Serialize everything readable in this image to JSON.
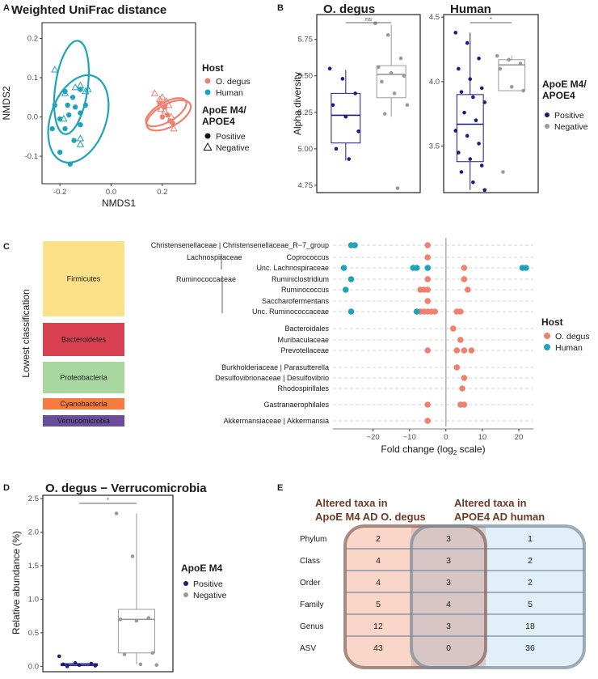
{
  "panel_labels": {
    "a": "A",
    "b": "B",
    "c": "C",
    "d": "D",
    "e": "E"
  },
  "colors": {
    "degus": "#f08070",
    "human": "#1fa3b8",
    "positive": "#1c1c80",
    "negative": "#9a9a9a",
    "firmicutes": "#fde08a",
    "bacteroidetes": "#d94152",
    "proteobacteria": "#a8d8a0",
    "cyanobacteria": "#f77a3e",
    "verrucomicrobia": "#6a4c9c",
    "venn_left": "#f9d2c3",
    "venn_right": "#cfe6f5",
    "venn_left_edge": "#8a6a60",
    "venn_right_edge": "#7a8a9a"
  },
  "chart_data": [
    {
      "id": "A",
      "type": "scatter",
      "title": "Weighted UniFrac distance",
      "xlabel": "NMDS1",
      "ylabel": "NMDS2",
      "xlim": [
        -0.27,
        0.33
      ],
      "ylim": [
        -0.17,
        0.24
      ],
      "xticks": [
        "-0.2",
        "0.0",
        "0.2"
      ],
      "xtick_values": [
        -0.2,
        0.0,
        0.2
      ],
      "yticks": [
        "-0.1",
        "0.0",
        "0.1",
        "0.2"
      ],
      "ytick_values": [
        -0.1,
        0.0,
        0.1,
        0.2
      ],
      "legend_host_title": "Host",
      "legend_host": [
        "O. degus",
        "Human"
      ],
      "legend_shape_title": "ApoE M4/ APOE4",
      "legend_shape_title_lines": [
        "ApoE M4/",
        "APOE4"
      ],
      "legend_shape": [
        "Positive",
        "Negative"
      ],
      "ellipses": [
        {
          "group": "human",
          "cx": -0.155,
          "cy": 0.075,
          "rx": 0.145,
          "ry": 0.05,
          "angle_deg": -82
        },
        {
          "group": "human",
          "cx": -0.128,
          "cy": -0.005,
          "rx": 0.14,
          "ry": 0.085,
          "angle_deg": -70
        },
        {
          "group": "degus",
          "cx": 0.215,
          "cy": 0.012,
          "rx": 0.07,
          "ry": 0.03,
          "angle_deg": -30
        },
        {
          "group": "degus",
          "cx": 0.225,
          "cy": 0.004,
          "rx": 0.075,
          "ry": 0.035,
          "angle_deg": -28
        }
      ],
      "points": [
        {
          "x": -0.22,
          "y": 0.03,
          "host": "human",
          "apoe": "positive"
        },
        {
          "x": -0.18,
          "y": 0.065,
          "host": "human",
          "apoe": "positive"
        },
        {
          "x": -0.17,
          "y": 0.03,
          "host": "human",
          "apoe": "positive"
        },
        {
          "x": -0.15,
          "y": 0.05,
          "host": "human",
          "apoe": "positive"
        },
        {
          "x": -0.12,
          "y": 0.01,
          "host": "human",
          "apoe": "positive"
        },
        {
          "x": -0.165,
          "y": 0.005,
          "host": "human",
          "apoe": "positive"
        },
        {
          "x": -0.14,
          "y": 0.025,
          "host": "human",
          "apoe": "positive"
        },
        {
          "x": -0.2,
          "y": -0.005,
          "host": "human",
          "apoe": "positive"
        },
        {
          "x": -0.23,
          "y": -0.03,
          "host": "human",
          "apoe": "positive"
        },
        {
          "x": -0.18,
          "y": -0.03,
          "host": "human",
          "apoe": "positive"
        },
        {
          "x": -0.12,
          "y": -0.02,
          "host": "human",
          "apoe": "positive"
        },
        {
          "x": -0.145,
          "y": -0.06,
          "host": "human",
          "apoe": "positive"
        },
        {
          "x": -0.2,
          "y": -0.09,
          "host": "human",
          "apoe": "positive"
        },
        {
          "x": -0.16,
          "y": -0.12,
          "host": "human",
          "apoe": "positive"
        },
        {
          "x": -0.1,
          "y": 0.03,
          "host": "human",
          "apoe": "positive"
        },
        {
          "x": -0.12,
          "y": 0.07,
          "host": "human",
          "apoe": "positive"
        },
        {
          "x": -0.22,
          "y": 0.12,
          "host": "human",
          "apoe": "negative"
        },
        {
          "x": -0.18,
          "y": 0.06,
          "host": "human",
          "apoe": "negative"
        },
        {
          "x": -0.14,
          "y": 0.075,
          "host": "human",
          "apoe": "negative"
        },
        {
          "x": -0.12,
          "y": 0.08,
          "host": "human",
          "apoe": "negative"
        },
        {
          "x": -0.1,
          "y": 0.065,
          "host": "human",
          "apoe": "negative"
        },
        {
          "x": -0.09,
          "y": 0.07,
          "host": "human",
          "apoe": "negative"
        },
        {
          "x": -0.185,
          "y": -0.005,
          "host": "human",
          "apoe": "negative"
        },
        {
          "x": -0.12,
          "y": -0.055,
          "host": "human",
          "apoe": "negative"
        },
        {
          "x": -0.12,
          "y": -0.07,
          "host": "human",
          "apoe": "negative"
        },
        {
          "x": 0.19,
          "y": 0.035,
          "host": "degus",
          "apoe": "positive"
        },
        {
          "x": 0.21,
          "y": 0.025,
          "host": "degus",
          "apoe": "positive"
        },
        {
          "x": 0.22,
          "y": 0.005,
          "host": "degus",
          "apoe": "positive"
        },
        {
          "x": 0.2,
          "y": 0.0,
          "host": "degus",
          "apoe": "positive"
        },
        {
          "x": 0.23,
          "y": -0.01,
          "host": "degus",
          "apoe": "positive"
        },
        {
          "x": 0.24,
          "y": -0.015,
          "host": "degus",
          "apoe": "positive"
        },
        {
          "x": 0.17,
          "y": 0.06,
          "host": "degus",
          "apoe": "negative"
        },
        {
          "x": 0.19,
          "y": 0.045,
          "host": "degus",
          "apoe": "negative"
        },
        {
          "x": 0.2,
          "y": 0.05,
          "host": "degus",
          "apoe": "negative"
        },
        {
          "x": 0.215,
          "y": 0.04,
          "host": "degus",
          "apoe": "negative"
        },
        {
          "x": 0.225,
          "y": 0.03,
          "host": "degus",
          "apoe": "negative"
        },
        {
          "x": 0.21,
          "y": 0.015,
          "host": "degus",
          "apoe": "negative"
        },
        {
          "x": 0.235,
          "y": 0.0,
          "host": "degus",
          "apoe": "negative"
        },
        {
          "x": 0.195,
          "y": 0.02,
          "host": "degus",
          "apoe": "negative"
        },
        {
          "x": 0.245,
          "y": -0.03,
          "host": "degus",
          "apoe": "negative"
        }
      ]
    },
    {
      "id": "B1",
      "type": "box",
      "title": "O. degus",
      "ylabel": "Alpha diversity",
      "ylim": [
        4.7,
        5.92
      ],
      "yticks": [
        "4.75",
        "5.00",
        "5.25",
        "5.50",
        "5.75"
      ],
      "ytick_values": [
        4.75,
        5.0,
        5.25,
        5.5,
        5.75
      ],
      "significance": "ns",
      "groups": [
        {
          "name": "Positive",
          "min": 4.92,
          "q1": 5.04,
          "median": 5.23,
          "q3": 5.38,
          "max": 5.54,
          "points": [
            5.55,
            5.48,
            5.38,
            5.3,
            5.22,
            5.12,
            5.0,
            4.93
          ]
        },
        {
          "name": "Negative",
          "min": 5.22,
          "q1": 5.35,
          "median": 5.51,
          "q3": 5.57,
          "max": 5.85,
          "points": [
            5.86,
            5.78,
            5.62,
            5.56,
            5.52,
            5.5,
            5.46,
            5.38,
            5.3,
            5.24,
            4.73
          ]
        }
      ]
    },
    {
      "id": "B2",
      "type": "box",
      "title": "Human",
      "ylim": [
        3.14,
        4.52
      ],
      "yticks": [
        "3.5",
        "4.0",
        "4.5"
      ],
      "ytick_values": [
        3.5,
        4.0,
        4.5
      ],
      "significance": "*",
      "legend_title": "ApoE M4/ APOE4",
      "legend_title_lines": [
        "ApoE M4/",
        "APOE4"
      ],
      "legend": [
        "Positive",
        "Negative"
      ],
      "groups": [
        {
          "name": "Positive",
          "min": 3.16,
          "q1": 3.38,
          "median": 3.67,
          "q3": 3.9,
          "max": 4.38,
          "points": [
            4.38,
            4.3,
            4.18,
            4.1,
            4.02,
            3.95,
            3.92,
            3.88,
            3.84,
            3.76,
            3.7,
            3.62,
            3.58,
            3.52,
            3.45,
            3.4,
            3.35,
            3.3,
            3.22,
            3.16
          ]
        },
        {
          "name": "Negative",
          "min": 3.93,
          "q1": 3.93,
          "median": 4.13,
          "q3": 4.17,
          "max": 4.2,
          "points": [
            4.2,
            4.17,
            4.14,
            4.1,
            3.96,
            3.93,
            3.3
          ]
        }
      ]
    },
    {
      "id": "C",
      "type": "dot",
      "xlabel": "Fold change (log₂ scale)",
      "xlabel_main": "Fold change (log",
      "xlabel_sub": "2",
      "xlabel_tail": " scale)",
      "ylabel": "Lowest classification",
      "xlim": [
        -31,
        24
      ],
      "xticks": [
        "−20",
        "−10",
        "0",
        "10",
        "20"
      ],
      "xtick_values": [
        -20,
        -10,
        0,
        10,
        20
      ],
      "legend_title": "Host",
      "legend": [
        "O. degus",
        "Human"
      ],
      "phyla": [
        {
          "name": "Firmicutes",
          "color_key": "firmicutes",
          "rows": [
            0,
            8
          ]
        },
        {
          "name": "Bacteroidetes",
          "color_key": "bacteroidetes",
          "rows": [
            9,
            11
          ]
        },
        {
          "name": "Proteobacteria",
          "color_key": "proteobacteria",
          "rows": [
            12,
            14
          ]
        },
        {
          "name": "Cyanobacteria",
          "color_key": "cyanobacteria",
          "rows": [
            15,
            15
          ]
        },
        {
          "name": "Verrucomicrobia",
          "color_key": "verrucomicrobia",
          "rows": [
            16,
            16
          ]
        }
      ],
      "bracket_labels": [
        {
          "label": "Lachnospiraceae",
          "rows": [
            1,
            2
          ]
        },
        {
          "label": "Ruminococcaceae",
          "rows": [
            3,
            6
          ]
        }
      ],
      "taxa": [
        {
          "label": "Christensenellaceae | Christensenellaceae_R−7_group",
          "human": [
            -26,
            -25
          ],
          "degus": [
            -5
          ]
        },
        {
          "label": "Coprococcus",
          "human": [],
          "degus": [
            -5
          ]
        },
        {
          "label": "Unc. Lachnospiraceae",
          "human": [
            -28,
            -9,
            -8,
            -5,
            21,
            22
          ],
          "degus": [
            5
          ]
        },
        {
          "label": "Ruminiclostridium",
          "human": [
            -26
          ],
          "degus": [
            -5,
            5
          ]
        },
        {
          "label": "Ruminococcus",
          "human": [
            -27.5
          ],
          "degus": [
            -7,
            -6,
            -5,
            6
          ]
        },
        {
          "label": "Saccharofermentans",
          "human": [],
          "degus": [
            -5
          ]
        },
        {
          "label": "Unc. Ruminococcaceae",
          "human": [
            -26,
            -8
          ],
          "degus": [
            -7,
            -6,
            -5,
            -4,
            -3,
            3,
            4
          ]
        },
        {
          "label": "Bacteroidales",
          "human": [],
          "degus": [
            2
          ]
        },
        {
          "label": "Muribaculaceae",
          "human": [],
          "degus": [
            4
          ]
        },
        {
          "label": "Prevotellaceae",
          "human": [],
          "degus": [
            -5,
            3,
            5,
            7
          ]
        },
        {
          "label": "Burkholderiaceae | Parasutterella",
          "human": [],
          "degus": [
            3
          ]
        },
        {
          "label": "Desulfovibrionaceae | Desulfovibrio",
          "human": [],
          "degus": [
            5
          ]
        },
        {
          "label": "Rhodospirillales",
          "human": [],
          "degus": [
            4.5
          ]
        },
        {
          "label": "Gastranaerophilales",
          "human": [],
          "degus": [
            -5,
            4,
            5
          ]
        },
        {
          "label": "Akkermansiaceae | Akkermansia",
          "human": [],
          "degus": [
            -5
          ]
        }
      ]
    },
    {
      "id": "D",
      "type": "box",
      "title": "O. degus − Verrucomicrobia",
      "ylabel": "Relative abundance (%)",
      "ylim": [
        -0.08,
        2.55
      ],
      "yticks": [
        "0.0",
        "0.5",
        "1.0",
        "1.5",
        "2.0",
        "2.5"
      ],
      "ytick_values": [
        0,
        0.5,
        1.0,
        1.5,
        2.0,
        2.5
      ],
      "significance": "*",
      "legend_title": "ApoE M4",
      "legend": [
        "Positive",
        "Negative"
      ],
      "groups": [
        {
          "name": "Positive",
          "min": 0.0,
          "q1": 0.01,
          "median": 0.03,
          "q3": 0.04,
          "max": 0.05,
          "points": [
            0.15,
            0.05,
            0.04,
            0.03,
            0.02,
            0.01,
            0.0
          ]
        },
        {
          "name": "Negative",
          "min": 0.03,
          "q1": 0.2,
          "median": 0.7,
          "q3": 0.85,
          "max": 2.28,
          "points": [
            2.28,
            1.64,
            0.72,
            0.7,
            0.68,
            0.2,
            0.18,
            0.03,
            0.02
          ]
        }
      ]
    },
    {
      "id": "E",
      "type": "table",
      "left_title_lines": [
        "Altered taxa in",
        "ApoE M4 AD O. degus"
      ],
      "right_title_lines": [
        "Altered taxa in",
        "APOE4 AD human"
      ],
      "rows": [
        {
          "label": "Phylum",
          "left": "2",
          "both": "3",
          "right": "1"
        },
        {
          "label": "Class",
          "left": "4",
          "both": "3",
          "right": "2"
        },
        {
          "label": "Order",
          "left": "4",
          "both": "3",
          "right": "2"
        },
        {
          "label": "Family",
          "left": "5",
          "both": "4",
          "right": "5"
        },
        {
          "label": "Genus",
          "left": "12",
          "both": "3",
          "right": "18"
        },
        {
          "label": "ASV",
          "left": "43",
          "both": "0",
          "right": "36"
        }
      ]
    }
  ]
}
